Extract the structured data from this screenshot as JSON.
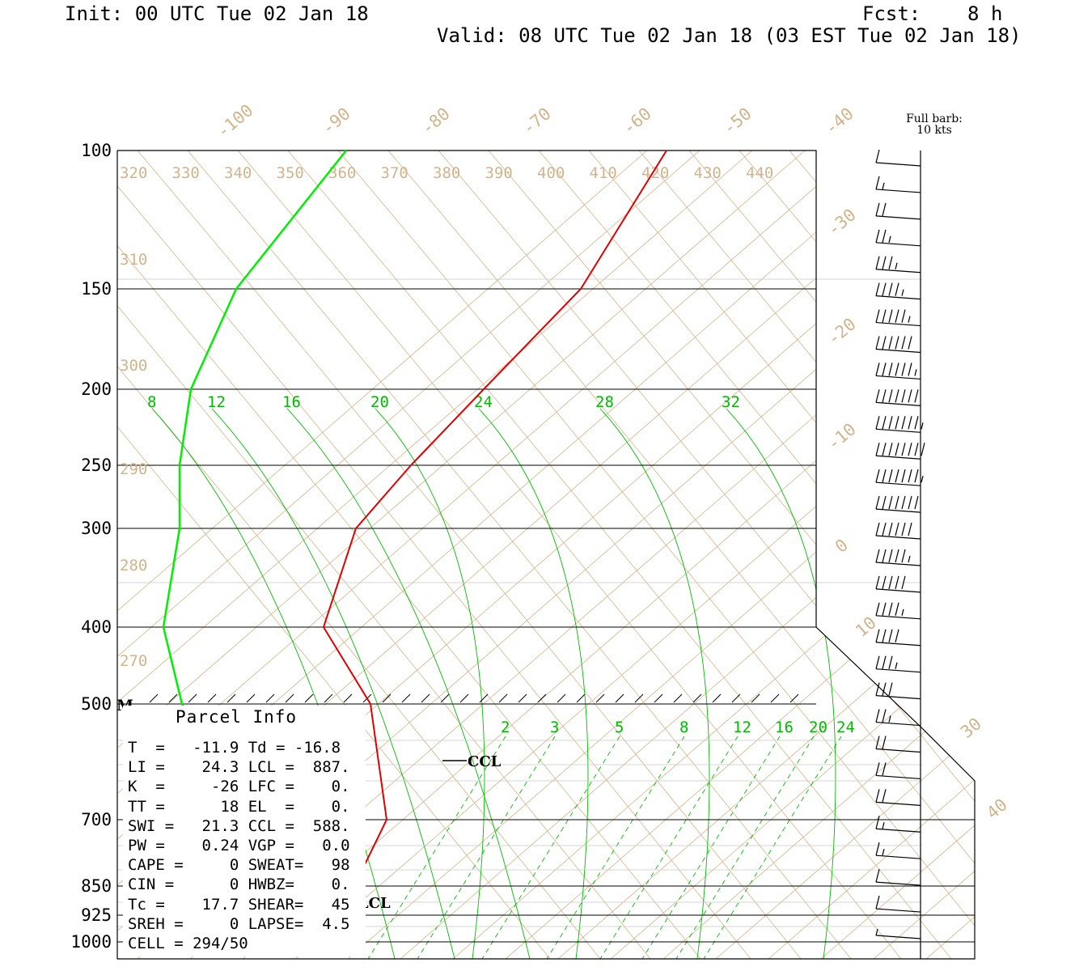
{
  "header": {
    "init": "Init: 00 UTC Tue 02 Jan 18",
    "fcst": "Fcst:    8 h",
    "valid": "Valid: 08 UTC Tue 02 Jan 18 (03 EST Tue 02 Jan 18)"
  },
  "barb_legend": {
    "line1": "Full barb:",
    "line2": "10 kts"
  },
  "pressure_levels": [
    "100",
    "150",
    "200",
    "250",
    "300",
    "400",
    "500",
    "700",
    "850",
    "925",
    "1000"
  ],
  "isotherm_labels": [
    "-100",
    "-90",
    "-80",
    "-70",
    "-60",
    "-50",
    "-40",
    "-30",
    "-20",
    "-10",
    "0",
    "10",
    "30",
    "40"
  ],
  "theta_labels_top": [
    "320",
    "330",
    "340",
    "350",
    "360",
    "370",
    "380",
    "390",
    "400",
    "410",
    "420",
    "430",
    "440"
  ],
  "theta_labels_left": [
    "310",
    "300",
    "290",
    "280",
    "270"
  ],
  "mixing_ratio_labels_upper": [
    "8",
    "12",
    "16",
    "20",
    "24",
    "28",
    "32"
  ],
  "mixing_ratio_labels_lower": [
    "2",
    "3",
    "5",
    "8",
    "12",
    "16",
    "20",
    "24"
  ],
  "markers": {
    "m": "M",
    "ccl": "CCL",
    "lcl": "LCL"
  },
  "parcel_info": {
    "title": "Parcel Info",
    "rows": [
      "T  =   -11.9 Td = -16.8",
      "LI =    24.3 LCL =  887.",
      "K  =     -26 LFC =    0.",
      "TT =      18 EL  =    0.",
      "SWI =   21.3 CCL =  588.",
      "PW =    0.24 VGP =   0.0",
      "CAPE =     0 SWEAT=   98",
      "CIN =      0 HWBZ=    0.",
      "Tc =    17.7 SHEAR=   45",
      "SREH =     0 LAPSE=  4.5",
      "CELL = 294/50"
    ]
  },
  "colors": {
    "temperature": "#e00000",
    "dewpoint": "#00ee00",
    "isotherm": "#d2b48c",
    "mixing_ratio": "#00bb00",
    "isobar": "#000000"
  },
  "chart_data": {
    "type": "skew-t sounding",
    "temperature_profile": [
      {
        "p": 1000,
        "t": -9
      },
      {
        "p": 925,
        "t": -11
      },
      {
        "p": 850,
        "t": -9
      },
      {
        "p": 700,
        "t": -14
      },
      {
        "p": 500,
        "t": -28
      },
      {
        "p": 400,
        "t": -38
      },
      {
        "p": 300,
        "t": -52
      },
      {
        "p": 250,
        "t": -55
      },
      {
        "p": 200,
        "t": -57
      },
      {
        "p": 150,
        "t": -60
      },
      {
        "p": 100,
        "t": -61
      }
    ],
    "dewpoint_profile": [
      {
        "p": 1000,
        "t": -14
      },
      {
        "p": 925,
        "t": -16
      },
      {
        "p": 850,
        "t": -24
      },
      {
        "p": 700,
        "t": -30
      },
      {
        "p": 500,
        "t": -48
      },
      {
        "p": 400,
        "t": -62
      },
      {
        "p": 300,
        "t": -72
      },
      {
        "p": 250,
        "t": -78
      },
      {
        "p": 200,
        "t": -85
      },
      {
        "p": 150,
        "t": -88
      },
      {
        "p": 100,
        "t": -84
      }
    ],
    "wind_barbs_kts": [
      10,
      15,
      20,
      25,
      35,
      45,
      55,
      60,
      65,
      70,
      75,
      80,
      75,
      70,
      60,
      55,
      50,
      45,
      40,
      35,
      30,
      25,
      20,
      20,
      20,
      15,
      15,
      10,
      10,
      5
    ]
  }
}
